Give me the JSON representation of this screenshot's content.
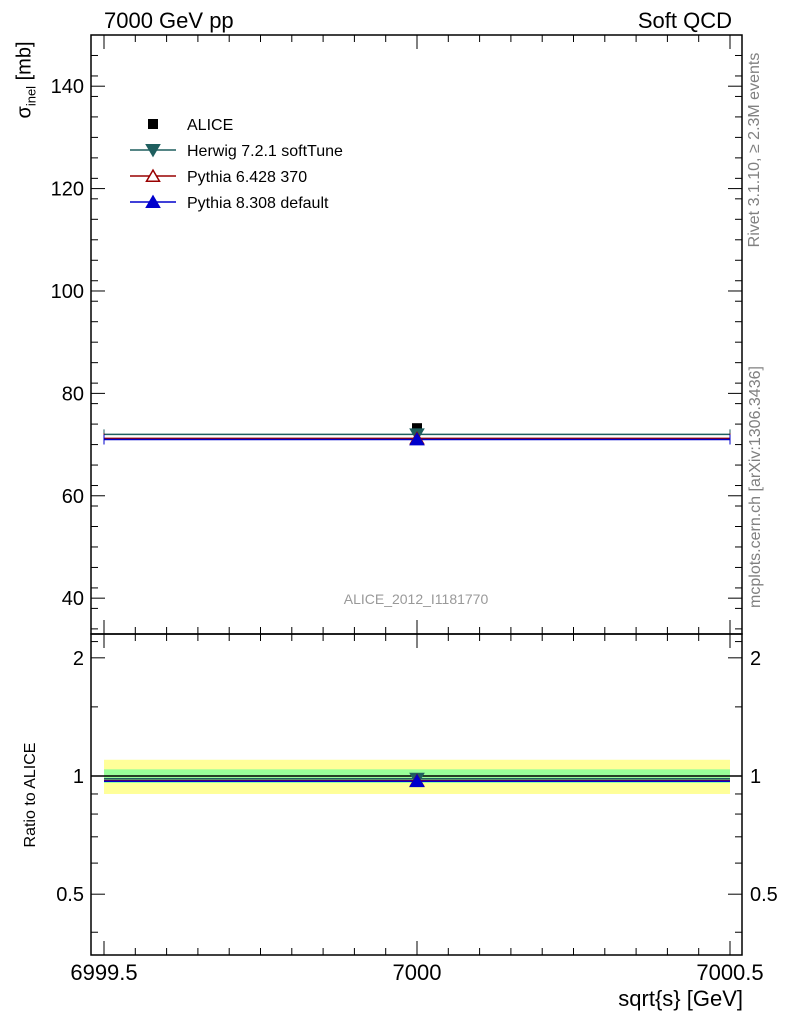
{
  "header": {
    "left": "7000 GeV pp",
    "right": "Soft QCD"
  },
  "side_labels": {
    "rivet": "Rivet 3.1.10, ≥ 2.3M events",
    "mcplots": "mcplots.cern.ch [arXiv:1306.3436]"
  },
  "watermark": "ALICE_2012_I1181770",
  "axes": {
    "ylabel_main_symbol": "σ",
    "ylabel_main_sub": "inel",
    "ylabel_main_unit": " [mb]",
    "ylabel_ratio": "Ratio to ALICE",
    "xlabel": "sqrt{s} [GeV]"
  },
  "chart_data": {
    "type": "scatter",
    "main": {
      "xlim": [
        6999.5,
        7000.5
      ],
      "ylim": [
        33,
        150
      ],
      "yticks": [
        40,
        60,
        80,
        100,
        120,
        140
      ],
      "xticks": [
        6999.5,
        7000,
        7000.5
      ],
      "xtick_labels": [
        "6999.5",
        "7000",
        "7000.5"
      ]
    },
    "ratio": {
      "ylim": [
        0.35,
        2.3
      ],
      "log_scale": true,
      "yticks": [
        0.5,
        1,
        2
      ],
      "ytick_labels": [
        "0.5",
        "1",
        "2"
      ]
    },
    "reference": {
      "name": "ALICE",
      "x": 7000,
      "y": 73.2,
      "band_inner": [
        0.96,
        1.04
      ],
      "band_outer": [
        0.9,
        1.1
      ]
    },
    "series": [
      {
        "name": "Herwig 7.2.1 softTune",
        "x": 7000,
        "y": 72.0,
        "ratio": 0.984,
        "color": "#1f5f5f",
        "marker": "triangle-down-filled"
      },
      {
        "name": "Pythia 6.428 370",
        "x": 7000,
        "y": 71.2,
        "ratio": 0.973,
        "color": "#990000",
        "marker": "triangle-up-open"
      },
      {
        "name": "Pythia 8.308 default",
        "x": 7000,
        "y": 71.0,
        "ratio": 0.97,
        "color": "#0000cc",
        "marker": "triangle-up-filled"
      }
    ],
    "legend": {
      "placement": "top-left",
      "entries": [
        "ALICE",
        "Herwig 7.2.1 softTune",
        "Pythia 6.428 370",
        "Pythia 8.308 default"
      ]
    },
    "colors": {
      "band_outer": "#ffff99",
      "band_inner": "#99ff99"
    }
  }
}
